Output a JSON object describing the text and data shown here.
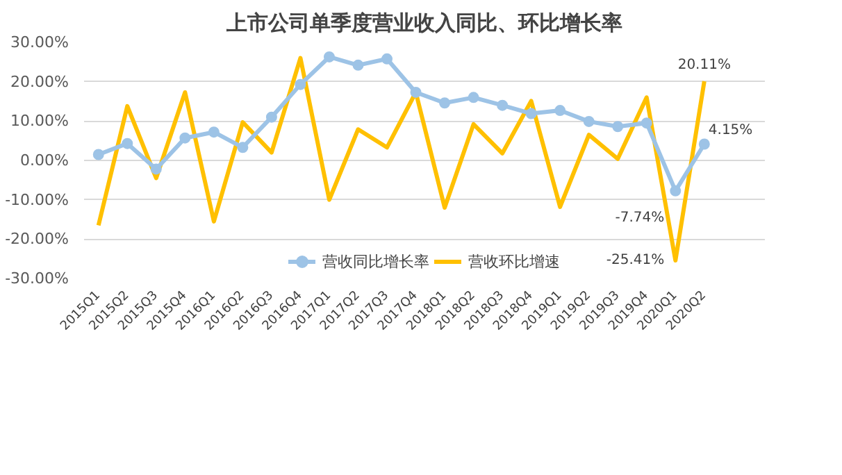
{
  "chart_data": {
    "type": "line",
    "title": "上市公司单季度营业收入同比、环比增长率",
    "categories": [
      "2015Q1",
      "2015Q2",
      "2015Q3",
      "2015Q4",
      "2016Q1",
      "2016Q2",
      "2016Q3",
      "2016Q4",
      "2017Q1",
      "2017Q2",
      "2017Q3",
      "2017Q4",
      "2018Q1",
      "2018Q2",
      "2018Q3",
      "2018Q4",
      "2019Q1",
      "2019Q2",
      "2019Q3",
      "2019Q4",
      "2020Q1",
      "2020Q2"
    ],
    "series": [
      {
        "name": "营收同比增长率",
        "color": "#9dc3e6",
        "marker": "circle",
        "values": [
          1.5,
          4.3,
          -2.2,
          5.7,
          7.2,
          3.3,
          11,
          19.3,
          26.3,
          24.2,
          25.8,
          17.3,
          14.6,
          16,
          14,
          11.9,
          12.7,
          9.9,
          8.6,
          9.5,
          -7.74,
          4.15
        ],
        "value_labels": [
          null,
          null,
          null,
          null,
          null,
          null,
          null,
          null,
          null,
          null,
          null,
          null,
          null,
          null,
          null,
          null,
          null,
          null,
          null,
          null,
          "-7.74%",
          "4.15%"
        ]
      },
      {
        "name": "营收环比增速",
        "color": "#ffc000",
        "marker": "none",
        "values": [
          -16.5,
          13.8,
          -4.5,
          17.3,
          -15.5,
          9.7,
          2,
          26,
          -10,
          7.9,
          3.3,
          17.3,
          -12,
          9.2,
          1.8,
          15.1,
          -11.8,
          6.5,
          0.4,
          16,
          -25.41,
          20.11
        ],
        "value_labels": [
          null,
          null,
          null,
          null,
          null,
          null,
          null,
          null,
          null,
          null,
          null,
          null,
          null,
          null,
          null,
          null,
          null,
          null,
          null,
          null,
          "-25.41%",
          "20.11%"
        ]
      }
    ],
    "ylim": [
      -30,
      30
    ],
    "yticks": [
      {
        "value": -30,
        "label": "-30.00%"
      },
      {
        "value": -20,
        "label": "-20.00%"
      },
      {
        "value": -10,
        "label": "-10.00%"
      },
      {
        "value": 0,
        "label": "0.00%"
      },
      {
        "value": 10,
        "label": "10.00%"
      },
      {
        "value": 20,
        "label": "20.00%"
      },
      {
        "value": 30,
        "label": "30.00%"
      }
    ],
    "grid": "y",
    "legend": "bottom",
    "line_style": "solid"
  }
}
